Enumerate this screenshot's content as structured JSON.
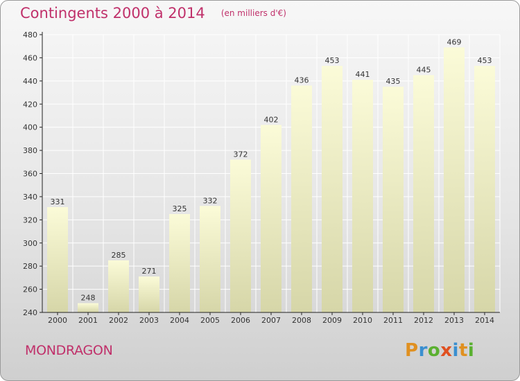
{
  "title": "Contingents 2000 à 2014",
  "subtitle": "(en milliers d'€)",
  "place": "MONDRAGON",
  "logo_text": "Proxiti",
  "colors": {
    "title": "#c0306a",
    "bar_top": "#fbfbd8",
    "bar_bottom": "#d6d6a8",
    "grid": "#ffffff",
    "axis": "#222222"
  },
  "chart_data": {
    "type": "bar",
    "categories": [
      "2000",
      "2001",
      "2002",
      "2003",
      "2004",
      "2005",
      "2006",
      "2007",
      "2008",
      "2009",
      "2010",
      "2011",
      "2012",
      "2013",
      "2014"
    ],
    "values": [
      331,
      248,
      285,
      271,
      325,
      332,
      372,
      402,
      436,
      453,
      441,
      435,
      445,
      469,
      453
    ],
    "yticks": [
      240,
      260,
      280,
      300,
      320,
      340,
      360,
      380,
      400,
      420,
      440,
      460,
      480
    ],
    "ylim": [
      240,
      480
    ],
    "grid": true,
    "data_labels": true
  }
}
